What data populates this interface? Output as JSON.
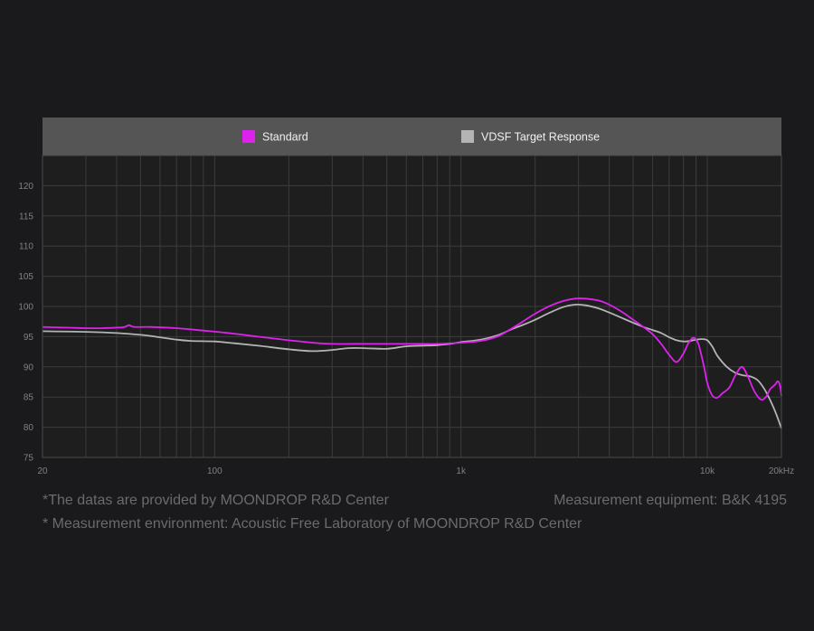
{
  "chart_data": {
    "type": "line",
    "title": "",
    "xlabel": "",
    "ylabel": "",
    "x_scale": "log",
    "xlim": [
      20,
      20000
    ],
    "ylim": [
      75,
      125
    ],
    "x_ticks": [
      {
        "value": 20,
        "label": "20"
      },
      {
        "value": 100,
        "label": "100"
      },
      {
        "value": 1000,
        "label": "1k"
      },
      {
        "value": 10000,
        "label": "10k"
      },
      {
        "value": 20000,
        "label": "20kHz"
      }
    ],
    "y_ticks": [
      75,
      80,
      85,
      90,
      95,
      100,
      105,
      110,
      115,
      120
    ],
    "grid": true,
    "legend_position": "top-center",
    "series": [
      {
        "name": "Standard",
        "color": "#dd22ee",
        "points": [
          [
            20,
            96.6
          ],
          [
            25,
            96.5
          ],
          [
            30,
            96.4
          ],
          [
            35,
            96.4
          ],
          [
            40,
            96.5
          ],
          [
            43,
            96.6
          ],
          [
            45,
            96.9
          ],
          [
            47,
            96.6
          ],
          [
            55,
            96.6
          ],
          [
            70,
            96.4
          ],
          [
            90,
            96.0
          ],
          [
            120,
            95.5
          ],
          [
            150,
            95.0
          ],
          [
            200,
            94.4
          ],
          [
            250,
            94.0
          ],
          [
            300,
            93.8
          ],
          [
            400,
            93.8
          ],
          [
            500,
            93.8
          ],
          [
            600,
            93.8
          ],
          [
            700,
            93.8
          ],
          [
            800,
            93.8
          ],
          [
            1000,
            94.0
          ],
          [
            1200,
            94.3
          ],
          [
            1400,
            95.0
          ],
          [
            1600,
            96.3
          ],
          [
            1800,
            97.6
          ],
          [
            2000,
            98.8
          ],
          [
            2300,
            100.1
          ],
          [
            2600,
            100.9
          ],
          [
            2900,
            101.3
          ],
          [
            3200,
            101.3
          ],
          [
            3600,
            101.0
          ],
          [
            4000,
            100.3
          ],
          [
            4500,
            99.1
          ],
          [
            5000,
            97.8
          ],
          [
            5500,
            96.6
          ],
          [
            6000,
            95.4
          ],
          [
            6500,
            93.8
          ],
          [
            7000,
            92.0
          ],
          [
            7500,
            90.8
          ],
          [
            8000,
            92.2
          ],
          [
            8400,
            94.0
          ],
          [
            8800,
            94.8
          ],
          [
            9200,
            93.8
          ],
          [
            9700,
            90.0
          ],
          [
            10000,
            87.3
          ],
          [
            10500,
            85.2
          ],
          [
            11000,
            84.9
          ],
          [
            11500,
            85.6
          ],
          [
            12300,
            86.6
          ],
          [
            13000,
            88.6
          ],
          [
            13800,
            90.0
          ],
          [
            14500,
            88.7
          ],
          [
            15500,
            86.0
          ],
          [
            16500,
            84.6
          ],
          [
            17300,
            85.0
          ],
          [
            18000,
            86.3
          ],
          [
            18800,
            87.0
          ],
          [
            19300,
            87.6
          ],
          [
            19700,
            87.0
          ],
          [
            20000,
            85.2
          ]
        ]
      },
      {
        "name": "VDSF Target Response",
        "color": "#b4b4b4",
        "points": [
          [
            20,
            95.9
          ],
          [
            30,
            95.8
          ],
          [
            40,
            95.6
          ],
          [
            50,
            95.3
          ],
          [
            60,
            94.9
          ],
          [
            70,
            94.5
          ],
          [
            80,
            94.3
          ],
          [
            100,
            94.2
          ],
          [
            120,
            93.9
          ],
          [
            150,
            93.5
          ],
          [
            200,
            92.9
          ],
          [
            250,
            92.6
          ],
          [
            300,
            92.8
          ],
          [
            350,
            93.1
          ],
          [
            400,
            93.1
          ],
          [
            500,
            93.0
          ],
          [
            600,
            93.4
          ],
          [
            700,
            93.5
          ],
          [
            800,
            93.6
          ],
          [
            900,
            93.8
          ],
          [
            1000,
            94.1
          ],
          [
            1200,
            94.5
          ],
          [
            1400,
            95.2
          ],
          [
            1600,
            96.2
          ],
          [
            1800,
            97.0
          ],
          [
            2000,
            97.8
          ],
          [
            2300,
            99.0
          ],
          [
            2600,
            99.9
          ],
          [
            2900,
            100.3
          ],
          [
            3200,
            100.2
          ],
          [
            3600,
            99.7
          ],
          [
            4000,
            99.0
          ],
          [
            4500,
            98.1
          ],
          [
            5000,
            97.3
          ],
          [
            5500,
            96.6
          ],
          [
            6000,
            96.1
          ],
          [
            6500,
            95.6
          ],
          [
            7000,
            94.9
          ],
          [
            7500,
            94.4
          ],
          [
            8000,
            94.2
          ],
          [
            8500,
            94.3
          ],
          [
            9000,
            94.5
          ],
          [
            9500,
            94.6
          ],
          [
            10000,
            94.4
          ],
          [
            10500,
            93.3
          ],
          [
            11000,
            91.8
          ],
          [
            12000,
            90.0
          ],
          [
            13000,
            89.0
          ],
          [
            14000,
            88.6
          ],
          [
            15000,
            88.4
          ],
          [
            16000,
            87.8
          ],
          [
            17000,
            86.4
          ],
          [
            18000,
            84.5
          ],
          [
            19000,
            82.3
          ],
          [
            20000,
            79.8
          ]
        ]
      }
    ]
  },
  "footnotes": {
    "left_line1": "*The datas are provided by MOONDROP R&D Center",
    "right_line1": "Measurement equipment: B&K 4195",
    "line2": "* Measurement environment: Acoustic Free Laboratory of MOONDROP R&D Center"
  },
  "colors": {
    "background": "#1a1a1c",
    "plot_background": "#1e1e1e",
    "legend_band": "#555555",
    "grid": "#3c3c3c",
    "tick_label": "#808080",
    "note_text": "#6b6b6b"
  }
}
